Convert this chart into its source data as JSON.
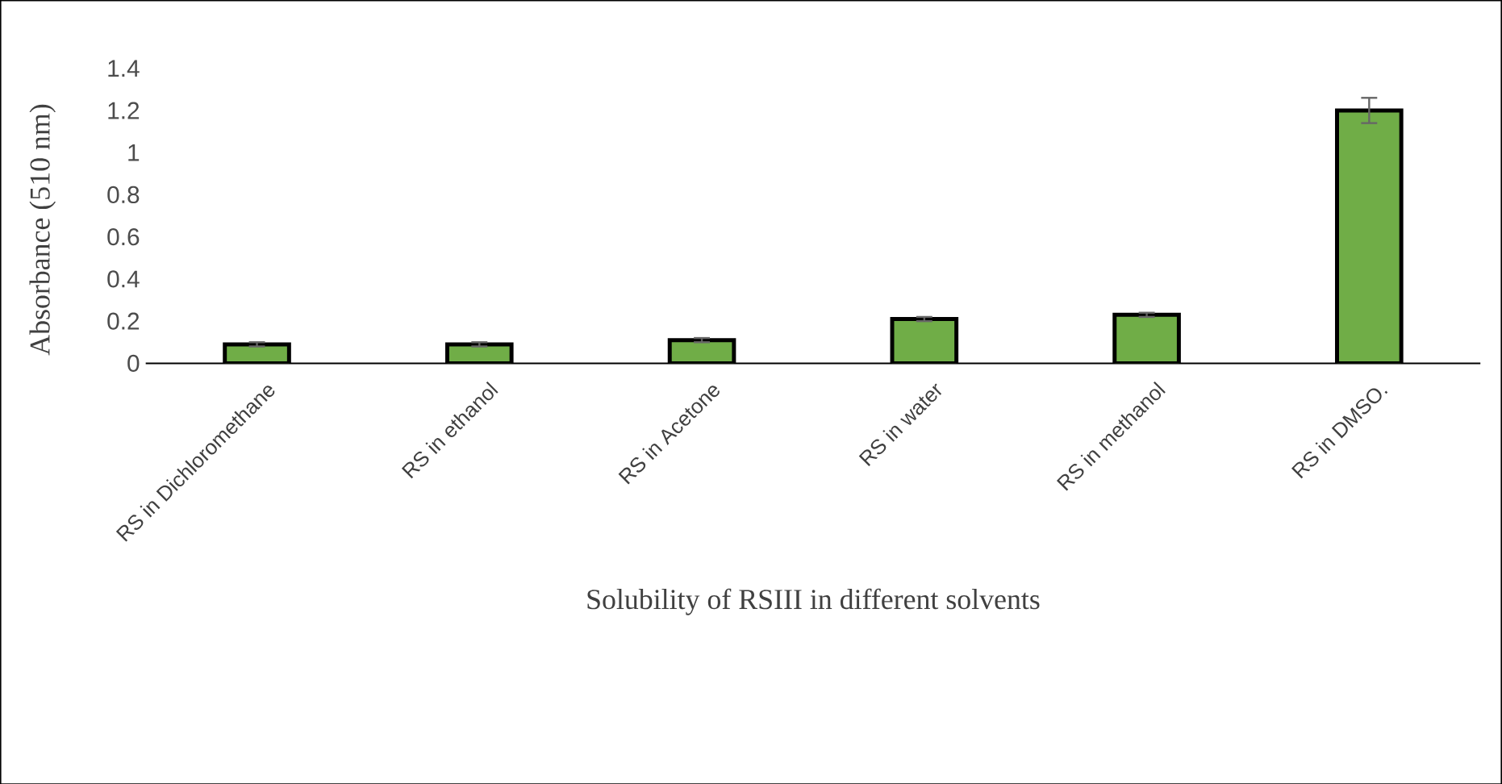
{
  "chart_data": {
    "type": "bar",
    "xlabel": "Solubility of RSIII in different solvents",
    "ylabel": "Absorbance (510 nm)",
    "categories": [
      "RS in Dichloromethane",
      "RS in ethanol",
      "RS in Acetone",
      "RS in water",
      "RS in methanol",
      "RS in DMSO."
    ],
    "values": [
      0.09,
      0.09,
      0.11,
      0.21,
      0.23,
      1.2
    ],
    "errors": [
      0.01,
      0.01,
      0.01,
      0.01,
      0.01,
      0.06
    ],
    "color": "#70ad47",
    "ylim": [
      0,
      1.4
    ],
    "yticks": [
      0,
      0.2,
      0.4,
      0.6,
      0.8,
      1,
      1.2,
      1.4
    ]
  }
}
